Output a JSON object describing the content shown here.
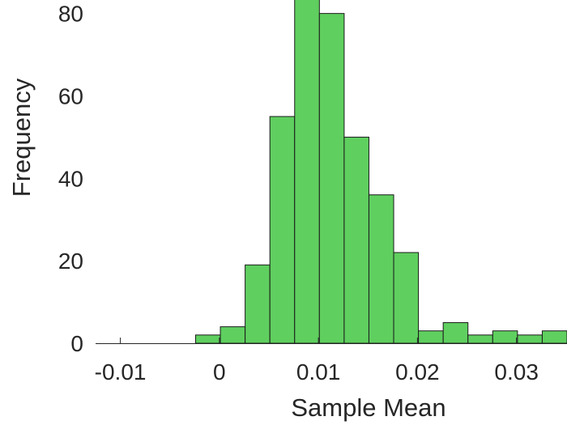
{
  "chart_data": {
    "type": "bar",
    "xlabel": "Sample Mean",
    "ylabel": "Frequency",
    "xlim": [
      -0.0125,
      0.0351
    ],
    "ylim": [
      0,
      87
    ],
    "xticks": [
      -0.01,
      0,
      0.01,
      0.02,
      0.03
    ],
    "xtick_labels": [
      "-0.01",
      "0",
      "0.01",
      "0.02",
      "0.03"
    ],
    "yticks": [
      0,
      20,
      40,
      60,
      80
    ],
    "ytick_labels": [
      "0",
      "20",
      "40",
      "60",
      "80"
    ],
    "bin_edges": [
      -0.0024,
      0.0001,
      0.0026,
      0.0051,
      0.0076,
      0.0101,
      0.0126,
      0.0151,
      0.0176,
      0.0201,
      0.0226,
      0.0251,
      0.0276,
      0.0301,
      0.0326,
      0.0351
    ],
    "values": [
      2,
      4,
      19,
      55,
      87,
      80,
      50,
      36,
      22,
      3,
      5,
      2,
      3,
      2,
      3
    ],
    "bar_color": "#5fcf5f",
    "edge_color": "#1a1a1a",
    "grid": false
  }
}
